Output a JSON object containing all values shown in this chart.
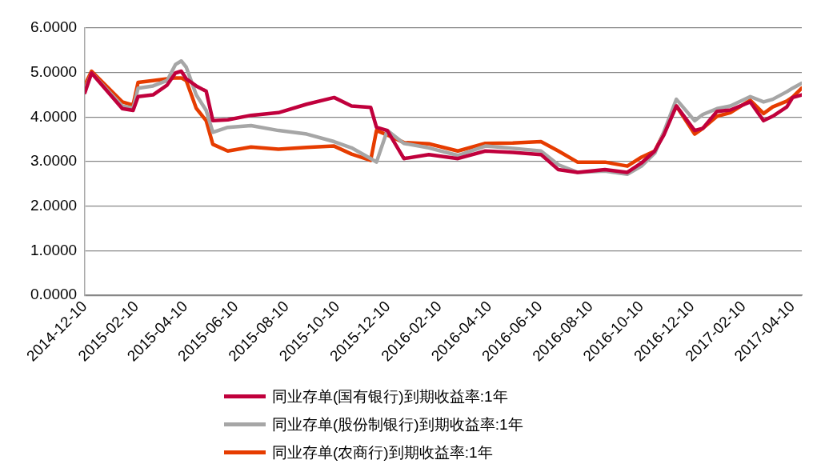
{
  "chart_data": {
    "type": "line",
    "x": [
      "2014-12-10",
      "2014-12-18",
      "2015-01-24",
      "2015-02-06",
      "2015-02-12",
      "2015-03-02",
      "2015-03-19",
      "2015-03-29",
      "2015-04-05",
      "2015-04-11",
      "2015-04-23",
      "2015-05-05",
      "2015-05-13",
      "2015-05-31",
      "2015-06-28",
      "2015-07-31",
      "2015-09-03",
      "2015-10-06",
      "2015-10-27",
      "2015-11-19",
      "2015-11-26",
      "2015-12-09",
      "2015-12-29",
      "2016-01-28",
      "2016-03-03",
      "2016-04-05",
      "2016-05-08",
      "2016-06-11",
      "2016-07-02",
      "2016-07-25",
      "2016-08-27",
      "2016-09-23",
      "2016-10-10",
      "2016-10-26",
      "2016-11-06",
      "2016-11-21",
      "2016-12-13",
      "2016-12-23",
      "2017-01-09",
      "2017-01-25",
      "2017-02-18",
      "2017-03-06",
      "2017-03-17",
      "2017-04-03",
      "2017-04-10",
      "2017-04-21"
    ],
    "series": [
      {
        "name": "同业存单(国有银行)到期收益率:1年",
        "color": "#c0003c",
        "values": [
          4.55,
          4.99,
          4.19,
          4.15,
          4.46,
          4.5,
          4.72,
          4.99,
          5.03,
          4.86,
          4.7,
          4.58,
          3.92,
          3.94,
          4.04,
          4.1,
          4.29,
          4.44,
          4.25,
          4.22,
          3.77,
          3.7,
          3.07,
          3.16,
          3.07,
          3.24,
          3.21,
          3.16,
          2.82,
          2.76,
          2.82,
          2.76,
          2.97,
          3.24,
          3.6,
          4.25,
          3.7,
          3.75,
          4.13,
          4.16,
          4.34,
          3.92,
          4.02,
          4.23,
          4.44,
          4.5
        ]
      },
      {
        "name": "同业存单(股份制银行)到期收益率:1年",
        "color": "#a6a6a6",
        "values": [
          4.61,
          4.99,
          4.25,
          4.2,
          4.65,
          4.7,
          4.82,
          5.18,
          5.26,
          5.12,
          4.5,
          4.15,
          3.66,
          3.77,
          3.81,
          3.7,
          3.62,
          3.45,
          3.31,
          3.07,
          2.99,
          3.7,
          3.41,
          3.31,
          3.14,
          3.35,
          3.3,
          3.24,
          2.93,
          2.76,
          2.79,
          2.72,
          2.9,
          3.19,
          3.67,
          4.4,
          3.92,
          4.06,
          4.19,
          4.25,
          4.46,
          4.34,
          4.4,
          4.57,
          4.65,
          4.76
        ]
      },
      {
        "name": "同业存单(农商行)到期收益率:1年",
        "color": "#e63c00",
        "values": [
          4.72,
          5.03,
          4.34,
          4.27,
          4.78,
          4.82,
          4.86,
          4.88,
          4.88,
          4.82,
          4.2,
          3.92,
          3.39,
          3.24,
          3.33,
          3.28,
          3.32,
          3.35,
          3.17,
          3.03,
          3.7,
          3.6,
          3.43,
          3.4,
          3.24,
          3.41,
          3.42,
          3.45,
          3.24,
          2.99,
          2.99,
          2.9,
          3.1,
          3.24,
          3.65,
          4.25,
          3.62,
          3.75,
          4.02,
          4.1,
          4.38,
          4.08,
          4.23,
          4.36,
          4.45,
          4.65
        ]
      }
    ],
    "xlim": [
      "2014-12-10",
      "2017-04-21"
    ],
    "xticks": [
      "2014-12-10",
      "2015-02-10",
      "2015-04-10",
      "2015-06-10",
      "2015-08-10",
      "2015-10-10",
      "2015-12-10",
      "2016-02-10",
      "2016-04-10",
      "2016-06-10",
      "2016-08-10",
      "2016-10-10",
      "2016-12-10",
      "2017-02-10",
      "2017-04-10"
    ],
    "ylim": [
      0,
      6
    ],
    "yticks": [
      {
        "value": 0,
        "label": "0.0000"
      },
      {
        "value": 1,
        "label": "1.0000"
      },
      {
        "value": 2,
        "label": "2.0000"
      },
      {
        "value": 3,
        "label": "3.0000"
      },
      {
        "value": 4,
        "label": "4.0000"
      },
      {
        "value": 5,
        "label": "5.0000"
      },
      {
        "value": 6,
        "label": "6.0000"
      }
    ],
    "grid": "y",
    "legend": "bottom",
    "marker": "none",
    "line_style": "solid"
  }
}
